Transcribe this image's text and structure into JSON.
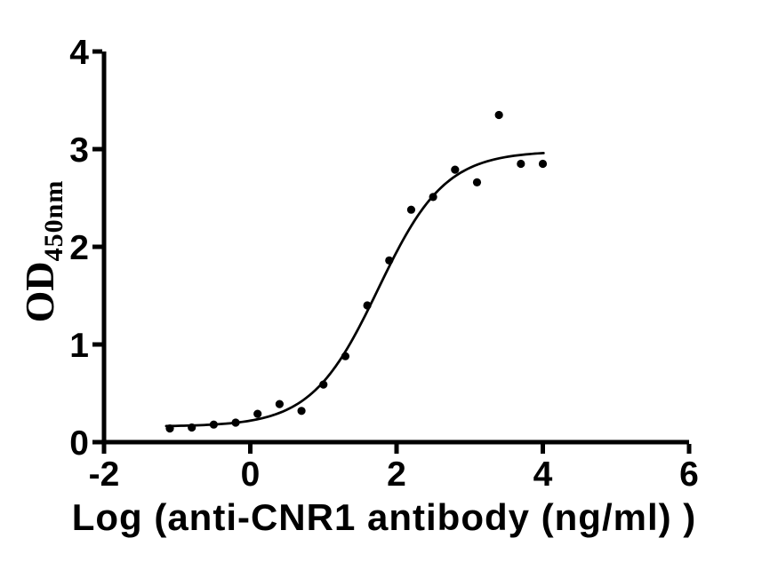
{
  "figure": {
    "background_color": "#ffffff",
    "foreground_color": "#000000"
  },
  "chart_data": {
    "type": "scatter",
    "title": "",
    "xlabel": "Log (anti-CNR1 antibody (ng/ml) )",
    "ylabel_main": "OD",
    "ylabel_sub": "450nm",
    "xlim": [
      -2,
      6
    ],
    "ylim": [
      0,
      4
    ],
    "x_ticks": [
      -2,
      0,
      2,
      4,
      6
    ],
    "y_ticks": [
      0,
      1,
      2,
      3,
      4
    ],
    "grid": false,
    "legend": null,
    "marker_color": "#000000",
    "curve_color": "#000000",
    "axis_color": "#000000",
    "points": [
      {
        "x": -1.1,
        "y": 0.14
      },
      {
        "x": -0.8,
        "y": 0.15
      },
      {
        "x": -0.5,
        "y": 0.18
      },
      {
        "x": -0.2,
        "y": 0.2
      },
      {
        "x": 0.1,
        "y": 0.29
      },
      {
        "x": 0.4,
        "y": 0.39
      },
      {
        "x": 0.7,
        "y": 0.32
      },
      {
        "x": 1.0,
        "y": 0.59
      },
      {
        "x": 1.3,
        "y": 0.88
      },
      {
        "x": 1.6,
        "y": 1.4
      },
      {
        "x": 1.9,
        "y": 1.86
      },
      {
        "x": 2.2,
        "y": 2.38
      },
      {
        "x": 2.5,
        "y": 2.51
      },
      {
        "x": 2.8,
        "y": 2.79
      },
      {
        "x": 3.1,
        "y": 2.66
      },
      {
        "x": 3.4,
        "y": 3.35
      },
      {
        "x": 3.7,
        "y": 2.85
      },
      {
        "x": 4.0,
        "y": 2.85
      }
    ],
    "fit_curve": {
      "model": "4PL-sigmoid",
      "bottom": 0.16,
      "top": 2.98,
      "log_ec50": 1.75,
      "hill": 0.95,
      "x_start": -1.15,
      "x_end": 4.02
    }
  }
}
